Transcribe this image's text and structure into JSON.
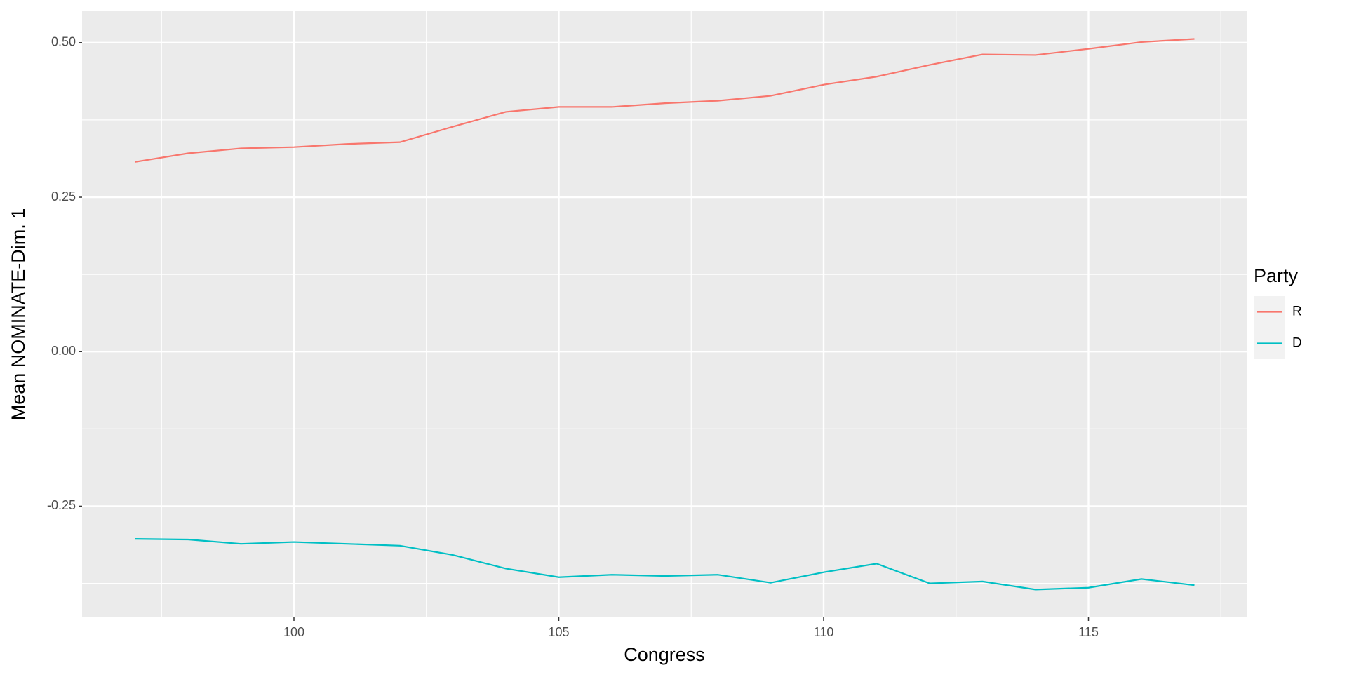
{
  "chart_data": {
    "type": "line",
    "x_label": "Congress",
    "y_label": "Mean NOMINATE-Dim. 1",
    "legend_title": "Party",
    "x": [
      97,
      98,
      99,
      100,
      101,
      102,
      103,
      104,
      105,
      106,
      107,
      108,
      109,
      110,
      111,
      112,
      113,
      114,
      115,
      116,
      117
    ],
    "series": [
      {
        "name": "R",
        "color": "#f8766d",
        "values": [
          0.307,
          0.321,
          0.329,
          0.331,
          0.336,
          0.339,
          0.364,
          0.388,
          0.396,
          0.396,
          0.402,
          0.406,
          0.414,
          0.432,
          0.445,
          0.464,
          0.481,
          0.48,
          0.49,
          0.501,
          0.506
        ]
      },
      {
        "name": "D",
        "color": "#00bfc4",
        "values": [
          -0.303,
          -0.304,
          -0.311,
          -0.308,
          -0.311,
          -0.314,
          -0.329,
          -0.351,
          -0.365,
          -0.361,
          -0.363,
          -0.361,
          -0.374,
          -0.357,
          -0.343,
          -0.375,
          -0.372,
          -0.385,
          -0.382,
          -0.368,
          -0.378
        ]
      }
    ],
    "xlim": [
      96,
      118
    ],
    "xticks": [
      100,
      105,
      110,
      115
    ],
    "ylim": [
      -0.43,
      0.552
    ],
    "yticks": [
      {
        "value": -0.25,
        "label": "-0.25"
      },
      {
        "value": 0,
        "label": "0.00"
      },
      {
        "value": 0.25,
        "label": "0.25"
      },
      {
        "value": 0.5,
        "label": "0.50"
      }
    ],
    "grid": true,
    "legend": "right"
  }
}
